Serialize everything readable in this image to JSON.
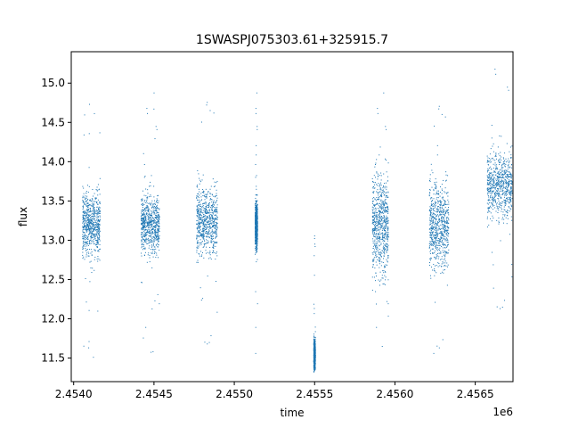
{
  "chart_data": {
    "type": "scatter",
    "title": "1SWASPJ075303.61+325915.7",
    "xlabel": "time",
    "ylabel": "flux",
    "x_offset_label": "1e6",
    "xlim": [
      2453985,
      2456735
    ],
    "ylim": [
      11.2,
      15.4
    ],
    "x_ticks": [
      2.454,
      2.4545,
      2.455,
      2.4555,
      2.456,
      2.4565
    ],
    "x_tick_labels": [
      "2.4540",
      "2.4545",
      "2.4550",
      "2.4555",
      "2.4560",
      "2.4565"
    ],
    "y_ticks": [
      11.5,
      12.0,
      12.5,
      13.0,
      13.5,
      14.0,
      14.5,
      15.0
    ],
    "y_tick_labels": [
      "11.5",
      "12.0",
      "12.5",
      "13.0",
      "13.5",
      "14.0",
      "14.5",
      "15.0"
    ],
    "grid": false,
    "point_color": "#1f77b4",
    "series": [
      {
        "segments": [
          {
            "x_range": [
              2454055,
              2454165
            ],
            "median": 13.2,
            "spread": 0.35
          },
          {
            "x_range": [
              2454420,
              2454535
            ],
            "median": 13.2,
            "spread": 0.3
          },
          {
            "x_range": [
              2454765,
              2454895
            ],
            "median": 13.25,
            "spread": 0.35
          },
          {
            "x_range": [
              2455130,
              2455145
            ],
            "median": 13.2,
            "spread": 0.25
          },
          {
            "x_range": [
              2455495,
              2455505
            ],
            "median": 11.55,
            "spread": 0.15
          },
          {
            "x_range": [
              2455860,
              2455960
            ],
            "median": 13.2,
            "spread": 0.55
          },
          {
            "x_range": [
              2456215,
              2456335
            ],
            "median": 13.2,
            "spread": 0.45
          },
          {
            "x_range": [
              2456575,
              2456730
            ],
            "median": 13.7,
            "spread": 0.35
          }
        ]
      }
    ]
  }
}
